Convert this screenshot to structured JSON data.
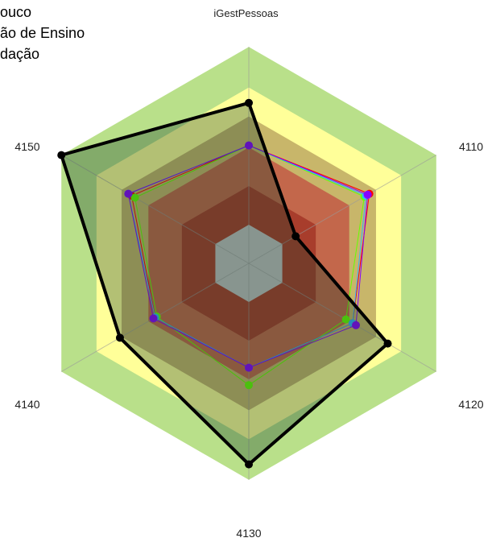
{
  "chart_data": {
    "type": "radar",
    "title": "iGestPessoas",
    "axes": [
      "4110",
      "4120",
      "4130",
      "4140",
      "4150",
      "iGestPessoas"
    ],
    "rlim": [
      0,
      1
    ],
    "bands": [
      {
        "from": 0.0,
        "to": 0.2,
        "color": "#c0c0c0"
      },
      {
        "from": 0.2,
        "to": 0.4,
        "color": "#a83d2c"
      },
      {
        "from": 0.4,
        "to": 0.6,
        "color": "#c3674b"
      },
      {
        "from": 0.6,
        "to": 0.76,
        "color": "#c8b66a"
      },
      {
        "from": 0.76,
        "to": 0.91,
        "color": "#ffff99"
      },
      {
        "from": 0.91,
        "to": 1.12,
        "color": "#b9e08a"
      }
    ],
    "legend": [
      {
        "label": "ouco"
      },
      {
        "label": "ão de Ensino"
      },
      {
        "label": "dação"
      }
    ],
    "series": [
      {
        "color": "#ff0000",
        "width": 1,
        "values": [
          0.72,
          0.62,
          0.54,
          0.56,
          0.7,
          0.61
        ]
      },
      {
        "color": "#66ff00",
        "width": 1,
        "values": [
          0.69,
          0.58,
          0.63,
          0.55,
          0.68,
          0.61
        ]
      },
      {
        "color": "#33b3ff",
        "width": 1,
        "values": [
          0.7,
          0.62,
          0.54,
          0.56,
          0.72,
          0.61
        ]
      },
      {
        "color": "#8800ff",
        "width": 1,
        "values": [
          0.71,
          0.64,
          0.54,
          0.57,
          0.72,
          0.61
        ]
      },
      {
        "color": "#000000",
        "width": 4,
        "values": [
          0.28,
          0.83,
          1.04,
          0.77,
          1.12,
          0.83
        ]
      }
    ]
  }
}
